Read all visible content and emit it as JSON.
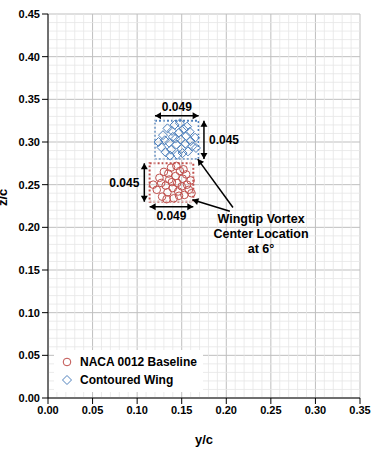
{
  "chart_data": {
    "type": "scatter",
    "x_label": "y/c",
    "y_label": "z/c",
    "xlim": [
      0,
      0.35
    ],
    "xticks": [
      {
        "value": 0,
        "label": "0.00"
      },
      {
        "value": 0.05,
        "label": "0.05"
      },
      {
        "value": 0.1,
        "label": "0.10"
      },
      {
        "value": 0.15,
        "label": "0.15"
      },
      {
        "value": 0.2,
        "label": "0.20"
      },
      {
        "value": 0.25,
        "label": "0.25"
      },
      {
        "value": 0.3,
        "label": "0.30"
      },
      {
        "value": 0.35,
        "label": "0.35"
      }
    ],
    "ylim": [
      0,
      0.45
    ],
    "yticks": [
      {
        "value": 0,
        "label": "0.00"
      },
      {
        "value": 0.05,
        "label": "0.05"
      },
      {
        "value": 0.1,
        "label": "0.10"
      },
      {
        "value": 0.15,
        "label": "0.15"
      },
      {
        "value": 0.2,
        "label": "0.20"
      },
      {
        "value": 0.25,
        "label": "0.25"
      },
      {
        "value": 0.3,
        "label": "0.30"
      },
      {
        "value": 0.35,
        "label": "0.35"
      },
      {
        "value": 0.4,
        "label": "0.40"
      },
      {
        "value": 0.45,
        "label": "0.45"
      }
    ],
    "grid": true,
    "legend": "lower left",
    "annotation": [
      "Wingtip Vortex",
      "Center Location",
      "at 6°"
    ],
    "series": [
      {
        "name": "NACA 0012 Baseline",
        "color": "#c0504d",
        "marker": "circle",
        "x": [
          0.118,
          0.122,
          0.125,
          0.128,
          0.13,
          0.132,
          0.134,
          0.136,
          0.138,
          0.14,
          0.141,
          0.143,
          0.145,
          0.146,
          0.148,
          0.15,
          0.151,
          0.153,
          0.155,
          0.156,
          0.158,
          0.16,
          0.135,
          0.127,
          0.147,
          0.139,
          0.144,
          0.152,
          0.133,
          0.161
        ],
        "values": [
          0.25,
          0.244,
          0.258,
          0.236,
          0.265,
          0.249,
          0.241,
          0.256,
          0.27,
          0.246,
          0.234,
          0.26,
          0.252,
          0.242,
          0.266,
          0.248,
          0.257,
          0.238,
          0.262,
          0.25,
          0.244,
          0.255,
          0.263,
          0.252,
          0.237,
          0.253,
          0.272,
          0.268,
          0.233,
          0.24
        ],
        "box": {
          "xlim": [
            0.114,
            0.163
          ],
          "ylim": [
            0.23,
            0.275
          ],
          "width": 0.049,
          "height": 0.045
        }
      },
      {
        "name": "Contoured Wing",
        "color": "#4f81bd",
        "marker": "diamond",
        "x": [
          0.124,
          0.127,
          0.129,
          0.132,
          0.134,
          0.136,
          0.138,
          0.14,
          0.142,
          0.144,
          0.145,
          0.147,
          0.149,
          0.15,
          0.152,
          0.154,
          0.155,
          0.157,
          0.159,
          0.16,
          0.162,
          0.165,
          0.139,
          0.131,
          0.151,
          0.143,
          0.148,
          0.156,
          0.137,
          0.166
        ],
        "values": [
          0.3,
          0.294,
          0.308,
          0.288,
          0.316,
          0.299,
          0.291,
          0.306,
          0.32,
          0.297,
          0.285,
          0.311,
          0.303,
          0.292,
          0.315,
          0.298,
          0.307,
          0.289,
          0.312,
          0.301,
          0.295,
          0.305,
          0.313,
          0.302,
          0.287,
          0.304,
          0.322,
          0.318,
          0.284,
          0.293
        ],
        "box": {
          "xlim": [
            0.12,
            0.169
          ],
          "ylim": [
            0.28,
            0.325
          ],
          "width": 0.049,
          "height": 0.045
        }
      }
    ]
  }
}
